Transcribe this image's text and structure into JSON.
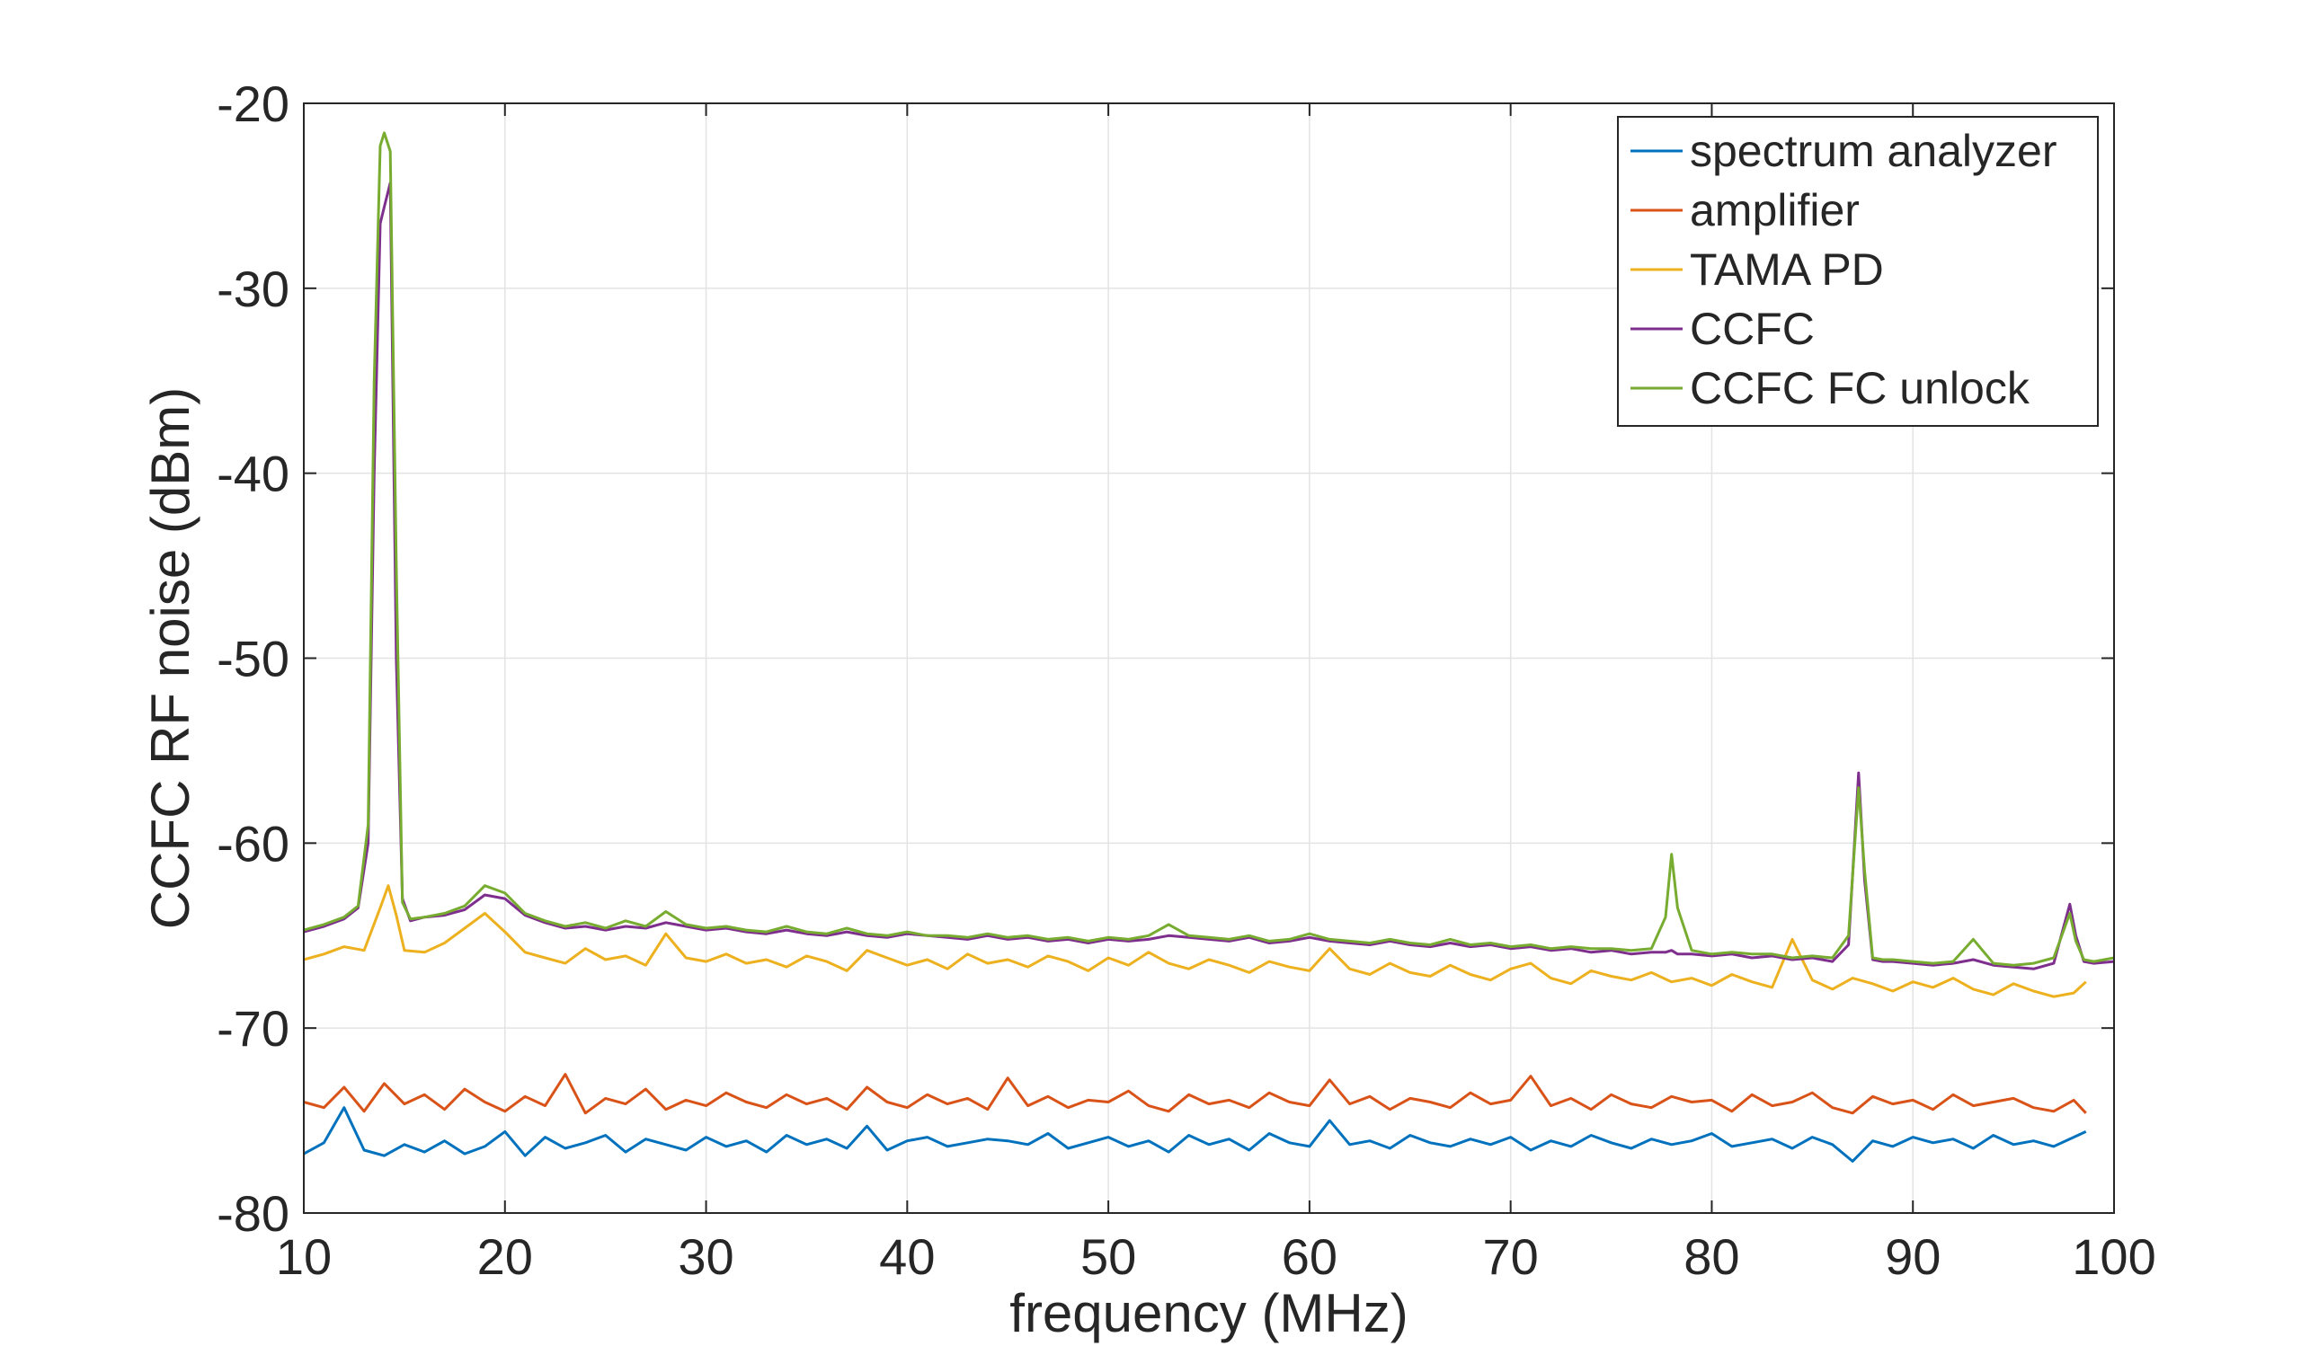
{
  "chart_data": {
    "type": "line",
    "title": "",
    "xlabel": "frequency (MHz)",
    "ylabel": "CCFC RF noise (dBm)",
    "xlim": [
      10,
      100
    ],
    "ylim": [
      -80,
      -20
    ],
    "xticks": [
      "10",
      "20",
      "30",
      "40",
      "50",
      "60",
      "70",
      "80",
      "90",
      "100"
    ],
    "yticks": [
      "-20",
      "-30",
      "-40",
      "-50",
      "-60",
      "-70",
      "-80"
    ],
    "grid": true,
    "legend_position": "top-right",
    "series": [
      {
        "name": "spectrum analyzer",
        "color": "#0072BD",
        "x": [
          10,
          11,
          12,
          13,
          14,
          15,
          16,
          17,
          18,
          19,
          20,
          21,
          22,
          23,
          24,
          25,
          26,
          27,
          28,
          29,
          30,
          31,
          32,
          33,
          34,
          35,
          36,
          37,
          38,
          39,
          40,
          41,
          42,
          43,
          44,
          45,
          46,
          47,
          48,
          49,
          50,
          51,
          52,
          53,
          54,
          55,
          56,
          57,
          58,
          59,
          60,
          61,
          62,
          63,
          64,
          65,
          66,
          67,
          68,
          69,
          70,
          71,
          72,
          73,
          74,
          75,
          76,
          77,
          78,
          79,
          80,
          81,
          82,
          83,
          84,
          85,
          86,
          87,
          88,
          89,
          90,
          91,
          92,
          93,
          94,
          95,
          96,
          97,
          98,
          98.6
        ],
        "y": [
          -76.8,
          -76.2,
          -74.3,
          -76.6,
          -76.9,
          -76.3,
          -76.7,
          -76.1,
          -76.8,
          -76.4,
          -75.6,
          -76.9,
          -75.9,
          -76.5,
          -76.2,
          -75.8,
          -76.7,
          -76.0,
          -76.3,
          -76.6,
          -75.9,
          -76.4,
          -76.1,
          -76.7,
          -75.8,
          -76.3,
          -76.0,
          -76.5,
          -75.3,
          -76.6,
          -76.1,
          -75.9,
          -76.4,
          -76.2,
          -76.0,
          -76.1,
          -76.3,
          -75.7,
          -76.5,
          -76.2,
          -75.9,
          -76.4,
          -76.1,
          -76.7,
          -75.8,
          -76.3,
          -76.0,
          -76.6,
          -75.7,
          -76.2,
          -76.4,
          -75.0,
          -76.3,
          -76.1,
          -76.5,
          -75.8,
          -76.2,
          -76.4,
          -76.0,
          -76.3,
          -75.9,
          -76.6,
          -76.1,
          -76.4,
          -75.8,
          -76.2,
          -76.5,
          -76.0,
          -76.3,
          -76.1,
          -75.7,
          -76.4,
          -76.2,
          -76.0,
          -76.5,
          -75.9,
          -76.3,
          -77.2,
          -76.1,
          -76.4,
          -75.9,
          -76.2,
          -76.0,
          -76.5,
          -75.8,
          -76.3,
          -76.1,
          -76.4,
          -75.9,
          -75.6
        ]
      },
      {
        "name": "amplifier",
        "color": "#D95319",
        "x": [
          10,
          11,
          12,
          13,
          14,
          15,
          16,
          17,
          18,
          19,
          20,
          21,
          22,
          23,
          24,
          25,
          26,
          27,
          28,
          29,
          30,
          31,
          32,
          33,
          34,
          35,
          36,
          37,
          38,
          39,
          40,
          41,
          42,
          43,
          44,
          45,
          46,
          47,
          48,
          49,
          50,
          51,
          52,
          53,
          54,
          55,
          56,
          57,
          58,
          59,
          60,
          61,
          62,
          63,
          64,
          65,
          66,
          67,
          68,
          69,
          70,
          71,
          72,
          73,
          74,
          75,
          76,
          77,
          78,
          79,
          80,
          81,
          82,
          83,
          84,
          85,
          86,
          87,
          88,
          89,
          90,
          91,
          92,
          93,
          94,
          95,
          96,
          97,
          98,
          98.6
        ],
        "y": [
          -74.0,
          -74.3,
          -73.2,
          -74.5,
          -73.0,
          -74.1,
          -73.6,
          -74.4,
          -73.3,
          -74.0,
          -74.5,
          -73.7,
          -74.2,
          -72.5,
          -74.6,
          -73.8,
          -74.1,
          -73.3,
          -74.4,
          -73.9,
          -74.2,
          -73.5,
          -74.0,
          -74.3,
          -73.6,
          -74.1,
          -73.8,
          -74.4,
          -73.2,
          -74.0,
          -74.3,
          -73.6,
          -74.1,
          -73.8,
          -74.4,
          -72.7,
          -74.2,
          -73.7,
          -74.3,
          -73.9,
          -74.0,
          -73.4,
          -74.2,
          -74.5,
          -73.6,
          -74.1,
          -73.9,
          -74.3,
          -73.5,
          -74.0,
          -74.2,
          -72.8,
          -74.1,
          -73.7,
          -74.4,
          -73.8,
          -74.0,
          -74.3,
          -73.5,
          -74.1,
          -73.9,
          -72.6,
          -74.2,
          -73.8,
          -74.4,
          -73.6,
          -74.1,
          -74.3,
          -73.7,
          -74.0,
          -73.9,
          -74.5,
          -73.6,
          -74.2,
          -74.0,
          -73.5,
          -74.3,
          -74.6,
          -73.7,
          -74.1,
          -73.9,
          -74.4,
          -73.6,
          -74.2,
          -74.0,
          -73.8,
          -74.3,
          -74.5,
          -73.9,
          -74.6
        ]
      },
      {
        "name": "TAMA PD",
        "color": "#EDB120",
        "x": [
          10,
          11,
          12,
          13,
          13.8,
          14.2,
          14.6,
          15,
          16,
          17,
          18,
          19,
          20,
          21,
          22,
          23,
          24,
          25,
          26,
          27,
          28,
          29,
          30,
          31,
          32,
          33,
          34,
          35,
          36,
          37,
          38,
          39,
          40,
          41,
          42,
          43,
          44,
          45,
          46,
          47,
          48,
          49,
          50,
          51,
          52,
          53,
          54,
          55,
          56,
          57,
          58,
          59,
          60,
          61,
          62,
          63,
          64,
          65,
          66,
          67,
          68,
          69,
          70,
          71,
          72,
          73,
          74,
          75,
          76,
          77,
          78,
          79,
          80,
          81,
          82,
          83,
          84,
          85,
          86,
          87,
          88,
          89,
          90,
          91,
          92,
          93,
          94,
          95,
          96,
          97,
          98,
          98.6
        ],
        "y": [
          -66.3,
          -66.0,
          -65.6,
          -65.8,
          -63.5,
          -62.3,
          -63.9,
          -65.8,
          -65.9,
          -65.4,
          -64.6,
          -63.8,
          -64.8,
          -65.9,
          -66.2,
          -66.5,
          -65.7,
          -66.3,
          -66.1,
          -66.6,
          -64.9,
          -66.2,
          -66.4,
          -66.0,
          -66.5,
          -66.3,
          -66.7,
          -66.1,
          -66.4,
          -66.9,
          -65.8,
          -66.2,
          -66.6,
          -66.3,
          -66.8,
          -66.0,
          -66.5,
          -66.3,
          -66.7,
          -66.1,
          -66.4,
          -66.9,
          -66.2,
          -66.6,
          -65.9,
          -66.5,
          -66.8,
          -66.3,
          -66.6,
          -67.0,
          -66.4,
          -66.7,
          -66.9,
          -65.7,
          -66.8,
          -67.1,
          -66.5,
          -67.0,
          -67.2,
          -66.6,
          -67.1,
          -67.4,
          -66.8,
          -66.5,
          -67.3,
          -67.6,
          -66.9,
          -67.2,
          -67.4,
          -67.0,
          -67.5,
          -67.3,
          -67.7,
          -67.1,
          -67.5,
          -67.8,
          -65.2,
          -67.4,
          -67.9,
          -67.3,
          -67.6,
          -68.0,
          -67.5,
          -67.8,
          -67.3,
          -67.9,
          -68.2,
          -67.6,
          -68.0,
          -68.3,
          -68.1,
          -67.5
        ]
      },
      {
        "name": "CCFC",
        "color": "#7E2F8E",
        "x": [
          10,
          11,
          12,
          12.7,
          13.2,
          13.5,
          13.8,
          14.0,
          14.3,
          14.6,
          14.9,
          15.3,
          16,
          17,
          18,
          19,
          20,
          21,
          22,
          23,
          24,
          25,
          26,
          27,
          28,
          29,
          30,
          31,
          32,
          33,
          34,
          35,
          36,
          37,
          38,
          39,
          40,
          41,
          42,
          43,
          44,
          45,
          46,
          47,
          48,
          49,
          50,
          51,
          52,
          53,
          54,
          55,
          56,
          57,
          58,
          59,
          60,
          61,
          62,
          63,
          64,
          65,
          66,
          67,
          68,
          69,
          70,
          71,
          72,
          73,
          74,
          75,
          76,
          77,
          77.7,
          78.0,
          78.3,
          79,
          80,
          81,
          82,
          83,
          84,
          85,
          86,
          86.8,
          87.3,
          87.6,
          88.0,
          88.5,
          89,
          90,
          91,
          92,
          93,
          94,
          95,
          96,
          97,
          97.8,
          98.1,
          98.5,
          99,
          100
        ],
        "y": [
          -64.8,
          -64.5,
          -64.1,
          -63.5,
          -60.0,
          -40.0,
          -26.5,
          -25.6,
          -24.3,
          -50.0,
          -63.0,
          -64.2,
          -64.0,
          -63.9,
          -63.6,
          -62.8,
          -63.0,
          -63.9,
          -64.3,
          -64.6,
          -64.5,
          -64.7,
          -64.5,
          -64.6,
          -64.3,
          -64.5,
          -64.7,
          -64.6,
          -64.8,
          -64.9,
          -64.7,
          -64.9,
          -65.0,
          -64.8,
          -65.0,
          -65.1,
          -64.9,
          -65.0,
          -65.1,
          -65.2,
          -65.0,
          -65.2,
          -65.1,
          -65.3,
          -65.2,
          -65.4,
          -65.2,
          -65.3,
          -65.2,
          -65.0,
          -65.1,
          -65.2,
          -65.3,
          -65.1,
          -65.4,
          -65.3,
          -65.1,
          -65.3,
          -65.4,
          -65.5,
          -65.3,
          -65.5,
          -65.6,
          -65.4,
          -65.6,
          -65.5,
          -65.7,
          -65.6,
          -65.8,
          -65.7,
          -65.9,
          -65.8,
          -66.0,
          -65.9,
          -65.9,
          -65.8,
          -66.0,
          -66.0,
          -66.1,
          -66.0,
          -66.2,
          -66.1,
          -66.3,
          -66.2,
          -66.4,
          -65.5,
          -56.2,
          -62.0,
          -66.3,
          -66.4,
          -66.4,
          -66.5,
          -66.6,
          -66.5,
          -66.3,
          -66.6,
          -66.7,
          -66.8,
          -66.5,
          -63.3,
          -65.0,
          -66.4,
          -66.5,
          -66.4
        ]
      },
      {
        "name": "CCFC FC unlock",
        "color": "#77AC30",
        "x": [
          10,
          11,
          12,
          12.7,
          13.2,
          13.5,
          13.8,
          14.0,
          14.3,
          14.6,
          14.9,
          15.3,
          16,
          17,
          18,
          19,
          20,
          21,
          22,
          23,
          24,
          25,
          26,
          27,
          28,
          29,
          30,
          31,
          32,
          33,
          34,
          35,
          36,
          37,
          38,
          39,
          40,
          41,
          42,
          43,
          44,
          45,
          46,
          47,
          48,
          49,
          50,
          51,
          52,
          53,
          54,
          55,
          56,
          57,
          58,
          59,
          60,
          61,
          62,
          63,
          64,
          65,
          66,
          67,
          68,
          69,
          70,
          71,
          72,
          73,
          74,
          75,
          76,
          77,
          77.7,
          78.0,
          78.3,
          79,
          80,
          81,
          82,
          83,
          84,
          85,
          86,
          86.8,
          87.3,
          87.6,
          88.0,
          88.5,
          89,
          90,
          91,
          92,
          93,
          94,
          95,
          96,
          97,
          97.8,
          98.1,
          98.5,
          99,
          100
        ],
        "y": [
          -64.7,
          -64.4,
          -64.0,
          -63.4,
          -59.0,
          -35.0,
          -22.3,
          -21.6,
          -22.6,
          -45.0,
          -63.2,
          -64.1,
          -64.0,
          -63.8,
          -63.4,
          -62.3,
          -62.7,
          -63.8,
          -64.2,
          -64.5,
          -64.3,
          -64.6,
          -64.2,
          -64.5,
          -63.7,
          -64.4,
          -64.6,
          -64.5,
          -64.7,
          -64.8,
          -64.5,
          -64.8,
          -64.9,
          -64.6,
          -64.9,
          -65.0,
          -64.8,
          -65.0,
          -65.0,
          -65.1,
          -64.9,
          -65.1,
          -65.0,
          -65.2,
          -65.1,
          -65.3,
          -65.1,
          -65.2,
          -65.0,
          -64.4,
          -65.0,
          -65.1,
          -65.2,
          -65.0,
          -65.3,
          -65.2,
          -64.9,
          -65.2,
          -65.3,
          -65.4,
          -65.2,
          -65.4,
          -65.5,
          -65.2,
          -65.5,
          -65.4,
          -65.6,
          -65.5,
          -65.7,
          -65.6,
          -65.7,
          -65.7,
          -65.8,
          -65.7,
          -64.0,
          -60.6,
          -63.5,
          -65.8,
          -66.0,
          -65.9,
          -66.0,
          -66.0,
          -66.2,
          -66.1,
          -66.2,
          -65.0,
          -57.0,
          -61.5,
          -66.2,
          -66.3,
          -66.3,
          -66.4,
          -66.5,
          -66.4,
          -65.2,
          -66.5,
          -66.6,
          -66.5,
          -66.2,
          -63.8,
          -65.3,
          -66.3,
          -66.4,
          -66.2
        ]
      }
    ]
  }
}
